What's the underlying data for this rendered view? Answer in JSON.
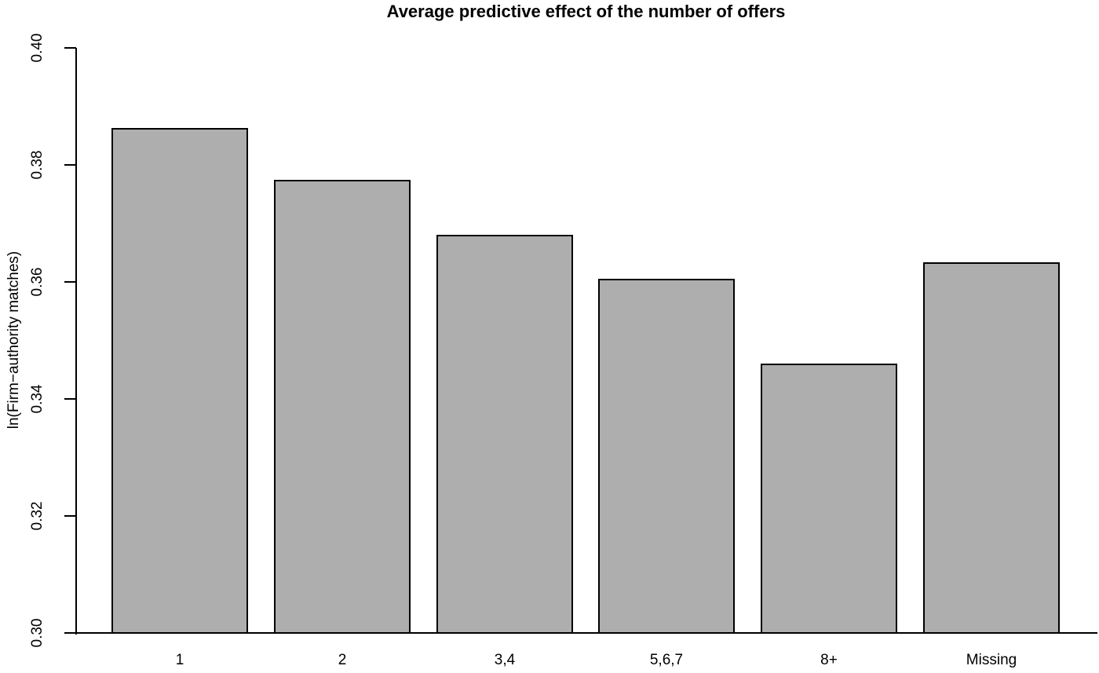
{
  "chart_data": {
    "type": "bar",
    "title": "Average predictive effect of the number of offers",
    "xlabel": "",
    "ylabel": "ln(Firm−authority matches)",
    "categories": [
      "1",
      "2",
      "3,4",
      "5,6,7",
      "8+",
      "Missing"
    ],
    "values": [
      0.3863,
      0.3774,
      0.368,
      0.3606,
      0.3461,
      0.3633
    ],
    "ylim": [
      0.3,
      0.4
    ],
    "yticks": [
      0.3,
      0.32,
      0.34,
      0.36,
      0.38,
      0.4
    ],
    "ytick_labels": [
      "0.30",
      "0.32",
      "0.34",
      "0.36",
      "0.38",
      "0.40"
    ],
    "grid": false,
    "legend": null,
    "bar_fill_color": "#aeaeae",
    "bar_border_color": "#000000",
    "axis_color": "#000000",
    "background_color": "#ffffff"
  }
}
